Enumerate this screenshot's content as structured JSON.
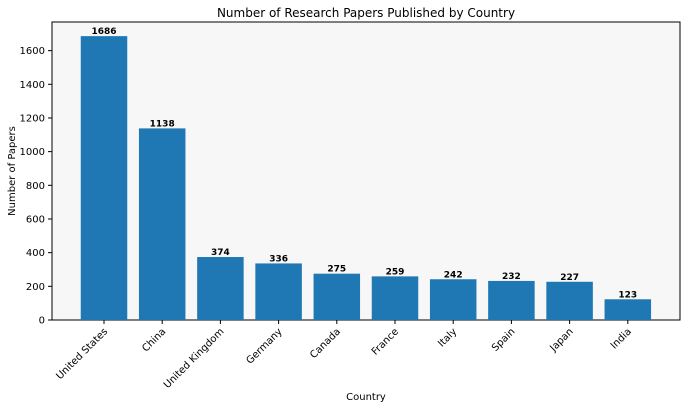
{
  "chart_data": {
    "type": "bar",
    "title": "Number of Research Papers Published by Country",
    "xlabel": "Country",
    "ylabel": "Number of Papers",
    "categories": [
      "United States",
      "China",
      "United Kingdom",
      "Germany",
      "Canada",
      "France",
      "Italy",
      "Spain",
      "Japan",
      "India"
    ],
    "values": [
      1686,
      1138,
      374,
      336,
      275,
      259,
      242,
      232,
      227,
      123
    ],
    "data_labels": [
      "1686",
      "1138",
      "374",
      "336",
      "275",
      "259",
      "242",
      "232",
      "227",
      "123"
    ],
    "yticks": [
      0,
      200,
      400,
      600,
      800,
      1000,
      1200,
      1400,
      1600
    ],
    "ytick_labels": [
      "0",
      "200",
      "400",
      "600",
      "800",
      "1000",
      "1200",
      "1400",
      "1600"
    ],
    "ylim": [
      0,
      1770
    ],
    "grid": false,
    "colors": {
      "bar": "#1f77b4",
      "plot_background": "#f7f7f7",
      "axes": "#000000"
    }
  }
}
